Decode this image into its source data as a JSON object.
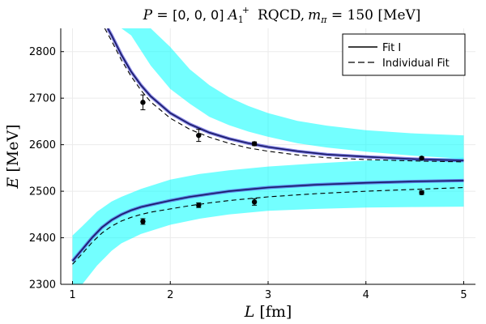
{
  "chart_data": {
    "type": "line",
    "title": {
      "lhs": "P",
      "eq": " = ",
      "momentum": "[0, 0, 0]",
      "irrep": "A",
      "irrep_sub": "1",
      "irrep_sup": "+",
      "collab": "RQCD,",
      "mass_sym": "m",
      "mass_sub": "π",
      "mass_eq": " = 150 ",
      "mass_unit": "[MeV]"
    },
    "xlabel": {
      "var": "L",
      "unit": " [fm]"
    },
    "ylabel": {
      "var": "E",
      "unit": " [MeV]"
    },
    "xlim": [
      0.88,
      5.12
    ],
    "ylim": [
      2300,
      2850
    ],
    "xticks": [
      1,
      2,
      3,
      4,
      5
    ],
    "yticks": [
      2300,
      2400,
      2500,
      2600,
      2700,
      2800
    ],
    "grid": true,
    "legend_position": "top-right",
    "legend": [
      {
        "label": "Fit I",
        "style": "solid"
      },
      {
        "label": "Individual Fit",
        "style": "dashed"
      }
    ],
    "colors": {
      "band": "#00ffff",
      "fit_line": "#1a1a66",
      "fit_inner": "#4f4fd9",
      "individual": "#000000",
      "points": "#000000",
      "grid": "#ebebeb"
    },
    "bands": [
      {
        "name": "upper-level-band",
        "x": [
          1.5,
          1.6,
          1.8,
          2.0,
          2.2,
          2.4,
          2.6,
          2.8,
          3.0,
          3.3,
          3.6,
          4.0,
          4.5,
          5.0
        ],
        "lower": [
          2850,
          2835,
          2770,
          2720,
          2688,
          2660,
          2642,
          2628,
          2617,
          2603,
          2594,
          2585,
          2576,
          2570
        ],
        "upper": [
          2850,
          2850,
          2850,
          2810,
          2762,
          2728,
          2702,
          2683,
          2668,
          2651,
          2641,
          2631,
          2624,
          2620
        ]
      },
      {
        "name": "lower-level-band",
        "x": [
          1.0,
          1.1,
          1.25,
          1.4,
          1.5,
          1.7,
          2.0,
          2.3,
          2.6,
          3.0,
          3.5,
          4.0,
          4.5,
          5.0
        ],
        "lower": [
          2300,
          2300,
          2340,
          2372,
          2388,
          2408,
          2428,
          2441,
          2450,
          2458,
          2462,
          2465,
          2466,
          2467
        ],
        "upper": [
          2405,
          2425,
          2456,
          2478,
          2488,
          2505,
          2525,
          2537,
          2545,
          2553,
          2560,
          2566,
          2570,
          2572
        ]
      }
    ],
    "series": [
      {
        "name": "Fit I (upper)",
        "style": "solid",
        "x": [
          1.36,
          1.4,
          1.5,
          1.6,
          1.7,
          1.8,
          2.0,
          2.2,
          2.4,
          2.6,
          2.8,
          3.0,
          3.3,
          3.6,
          4.0,
          4.5,
          5.0
        ],
        "y": [
          2850,
          2835,
          2793,
          2757,
          2728,
          2704,
          2668,
          2644,
          2626,
          2613,
          2603,
          2595,
          2586,
          2579,
          2574,
          2569,
          2566
        ]
      },
      {
        "name": "Individual Fit (upper)",
        "style": "dashed",
        "x": [
          1.33,
          1.4,
          1.5,
          1.6,
          1.7,
          1.8,
          2.0,
          2.2,
          2.4,
          2.6,
          2.8,
          3.0,
          3.3,
          3.6,
          4.0,
          4.5,
          5.0
        ],
        "y": [
          2850,
          2823,
          2782,
          2747,
          2717,
          2692,
          2657,
          2633,
          2616,
          2603,
          2593,
          2586,
          2578,
          2572,
          2568,
          2565,
          2563
        ]
      },
      {
        "name": "Fit I (lower)",
        "style": "solid",
        "x": [
          1.0,
          1.1,
          1.2,
          1.3,
          1.4,
          1.5,
          1.6,
          1.7,
          1.8,
          2.0,
          2.2,
          2.4,
          2.6,
          2.8,
          3.0,
          3.5,
          4.0,
          4.5,
          5.0
        ],
        "y": [
          2350,
          2375,
          2400,
          2422,
          2438,
          2450,
          2459,
          2466,
          2471,
          2480,
          2488,
          2494,
          2500,
          2504,
          2508,
          2514,
          2518,
          2521,
          2523
        ]
      },
      {
        "name": "Individual Fit (lower)",
        "style": "dashed",
        "x": [
          1.0,
          1.1,
          1.2,
          1.3,
          1.4,
          1.5,
          1.6,
          1.7,
          1.8,
          2.0,
          2.2,
          2.4,
          2.6,
          2.8,
          3.0,
          3.5,
          4.0,
          4.5,
          5.0
        ],
        "y": [
          2343,
          2366,
          2390,
          2410,
          2425,
          2436,
          2444,
          2450,
          2455,
          2462,
          2469,
          2475,
          2480,
          2484,
          2488,
          2495,
          2500,
          2504,
          2508
        ]
      }
    ],
    "points": [
      {
        "x": 1.72,
        "y": 2691,
        "err": 16
      },
      {
        "x": 2.29,
        "y": 2620,
        "err": 13
      },
      {
        "x": 2.86,
        "y": 2602,
        "err": 4
      },
      {
        "x": 4.57,
        "y": 2571,
        "err": 3
      },
      {
        "x": 1.72,
        "y": 2435,
        "err": 6
      },
      {
        "x": 2.29,
        "y": 2470,
        "err": 5
      },
      {
        "x": 2.86,
        "y": 2477,
        "err": 7
      },
      {
        "x": 4.57,
        "y": 2497,
        "err": 4
      }
    ]
  }
}
